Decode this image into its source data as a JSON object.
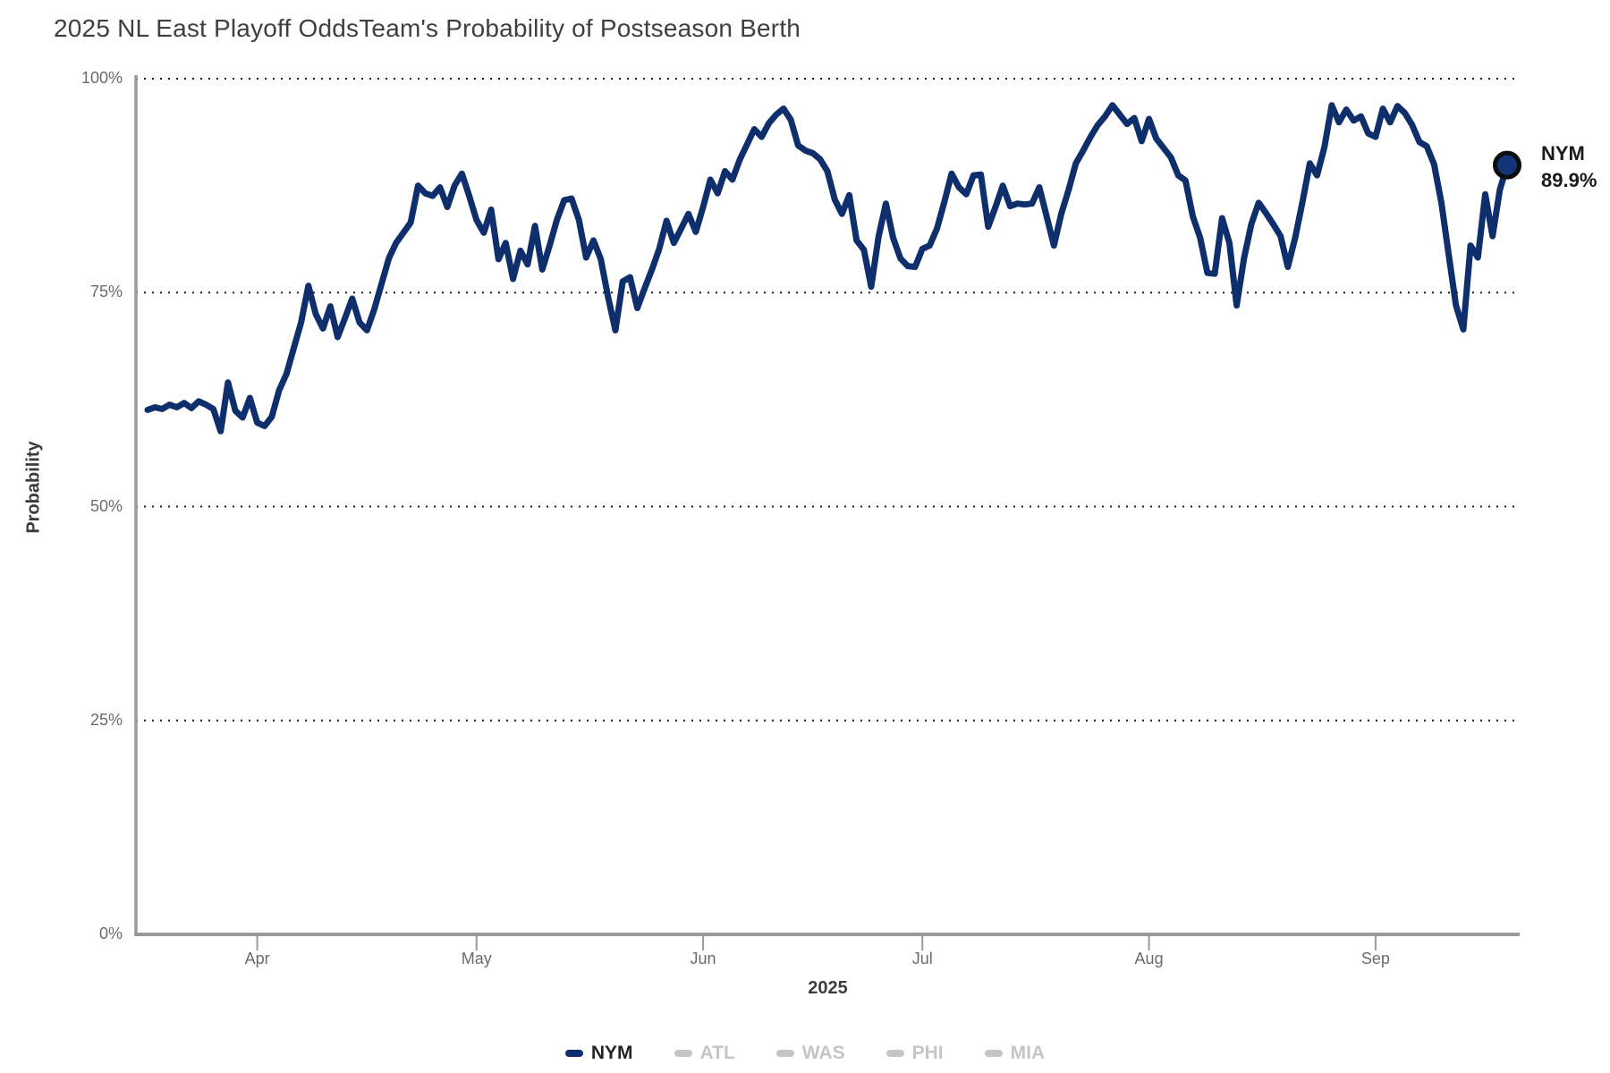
{
  "header": {
    "title": "2025 NL East Playoff Odds",
    "subtitle": "Team's Probability of Postseason Berth"
  },
  "axes": {
    "y_label": "Probability",
    "y_tick_labels": [
      "100%",
      "75%",
      "50%",
      "25%",
      "0%"
    ],
    "y_tick_values": [
      100,
      75,
      50,
      25,
      0
    ],
    "x_tick_labels": [
      "Apr",
      "May",
      "Jun",
      "Jul",
      "Aug",
      "Sep"
    ],
    "x_axis_title": "2025"
  },
  "end_label": {
    "team": "NYM",
    "value": "89.9%"
  },
  "legend": {
    "items": [
      {
        "label": "NYM",
        "color": "#0e2e6c",
        "active": true
      },
      {
        "label": "ATL",
        "color": "#c5c5c5",
        "active": false
      },
      {
        "label": "WAS",
        "color": "#c5c5c5",
        "active": false
      },
      {
        "label": "PHI",
        "color": "#c5c5c5",
        "active": false
      },
      {
        "label": "MIA",
        "color": "#c5c5c5",
        "active": false
      }
    ]
  },
  "colors": {
    "line": "#0e2e6c",
    "dot_fill": "#133577",
    "dot_ring": "#0c0c0c",
    "grid": "#1a1a1a",
    "axis": "#9a9a9a",
    "tick_text": "#6b6b6b",
    "title_text": "#3f3f3f",
    "inactive": "#c5c5c5",
    "active_text": "#242424"
  },
  "chart_data": {
    "type": "line",
    "title": "2025 NL East Playoff Odds",
    "subtitle": "Team's Probability of Postseason Berth",
    "xlabel": "2025",
    "ylabel": "Probability",
    "ylim": [
      0,
      100
    ],
    "y_ticks": [
      100,
      75,
      50,
      25,
      0
    ],
    "grid": "dotted-horizontal",
    "legend_position": "bottom",
    "x_unit": "day",
    "x_start": "2025-03-17",
    "x_end": "2025-09-19",
    "x_tick_dates": [
      "2025-04-01",
      "2025-05-01",
      "2025-06-01",
      "2025-07-01",
      "2025-08-01",
      "2025-09-01"
    ],
    "x_tick_labels": [
      "Apr",
      "May",
      "Jun",
      "Jul",
      "Aug",
      "Sep"
    ],
    "series": [
      {
        "name": "NYM",
        "color": "#0e2e6c",
        "visible": true,
        "final_value": 89.9,
        "values": [
          61.3,
          61.6,
          61.4,
          61.9,
          61.6,
          62.1,
          61.5,
          62.3,
          61.9,
          61.4,
          58.8,
          64.5,
          61.2,
          60.4,
          62.7,
          59.8,
          59.4,
          60.5,
          63.6,
          65.5,
          68.5,
          71.5,
          75.8,
          72.5,
          70.8,
          73.4,
          69.8,
          72.0,
          74.3,
          71.5,
          70.6,
          73.0,
          76.0,
          79.0,
          80.8,
          82.0,
          83.2,
          87.5,
          86.6,
          86.3,
          87.3,
          85.0,
          87.5,
          88.9,
          86.3,
          83.5,
          82.0,
          84.7,
          78.9,
          80.8,
          76.6,
          79.9,
          78.3,
          82.8,
          77.7,
          80.5,
          83.5,
          85.8,
          86.0,
          83.5,
          79.1,
          81.1,
          78.9,
          74.5,
          70.6,
          76.3,
          76.8,
          73.2,
          75.5,
          77.7,
          80.1,
          83.4,
          80.8,
          82.5,
          84.2,
          82.1,
          85.0,
          88.2,
          86.6,
          89.2,
          88.2,
          90.5,
          92.3,
          94.1,
          93.2,
          94.8,
          95.8,
          96.5,
          95.2,
          92.2,
          91.6,
          91.3,
          90.6,
          89.2,
          85.9,
          84.2,
          86.4,
          81.1,
          80.0,
          75.7,
          81.5,
          85.4,
          81.4,
          79.0,
          78.1,
          78.0,
          80.1,
          80.5,
          82.5,
          85.6,
          88.9,
          87.3,
          86.5,
          88.7,
          88.8,
          82.7,
          85.0,
          87.5,
          85.1,
          85.4,
          85.3,
          85.4,
          87.3,
          83.9,
          80.5,
          84.2,
          87.0,
          90.1,
          91.6,
          93.2,
          94.6,
          95.6,
          96.9,
          95.8,
          94.7,
          95.4,
          92.7,
          95.3,
          93.0,
          91.9,
          90.8,
          88.7,
          88.1,
          83.9,
          81.4,
          77.3,
          77.2,
          83.7,
          80.8,
          73.5,
          79.0,
          83.0,
          85.5,
          84.3,
          83.0,
          81.6,
          78.0,
          81.4,
          85.6,
          90.1,
          88.7,
          92.0,
          96.9,
          94.9,
          96.4,
          95.1,
          95.6,
          93.6,
          93.2,
          96.5,
          94.9,
          96.8,
          96.0,
          94.6,
          92.6,
          92.1,
          90.0,
          85.5,
          79.5,
          73.5,
          70.7,
          80.5,
          79.1,
          86.5,
          81.6,
          87.0,
          89.9
        ]
      },
      {
        "name": "ATL",
        "color": "#c5c5c5",
        "visible": false
      },
      {
        "name": "WAS",
        "color": "#c5c5c5",
        "visible": false
      },
      {
        "name": "PHI",
        "color": "#c5c5c5",
        "visible": false
      },
      {
        "name": "MIA",
        "color": "#c5c5c5",
        "visible": false
      }
    ]
  }
}
